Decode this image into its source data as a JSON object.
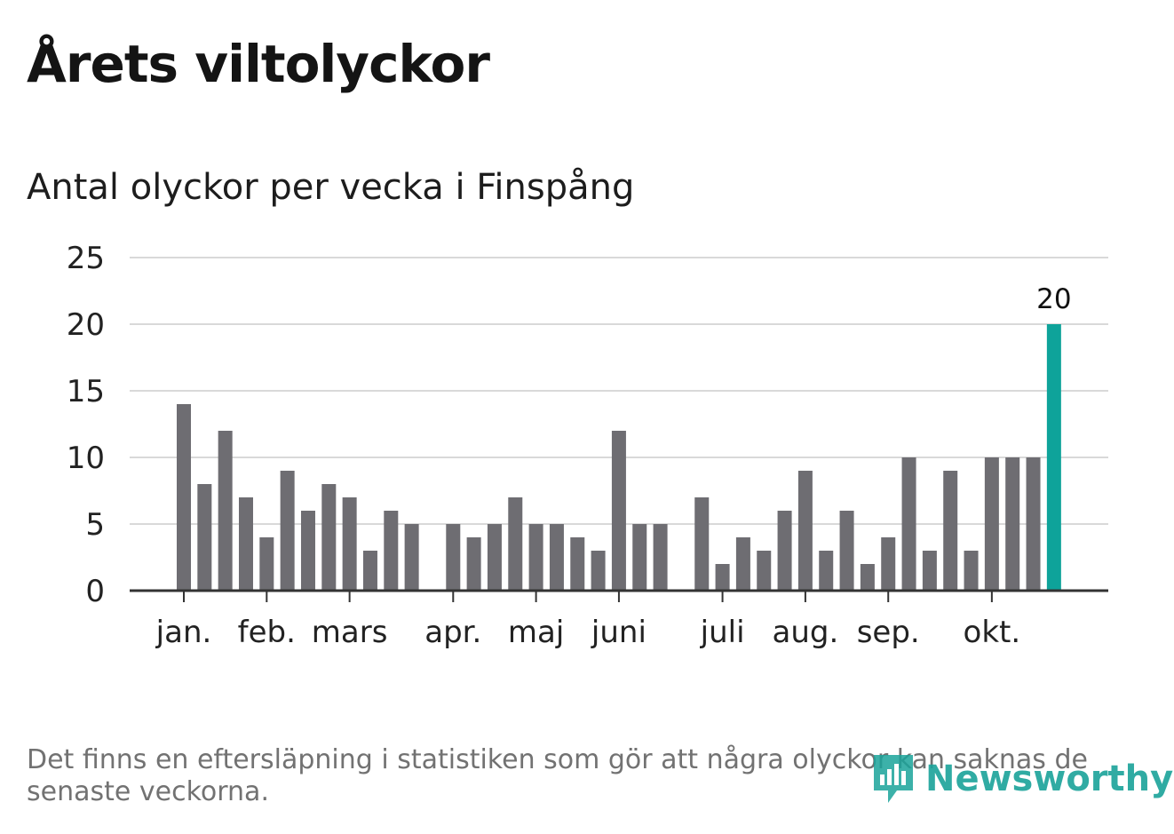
{
  "title": "Årets viltolyckor",
  "subtitle": "Antal olyckor per vecka i Finspång",
  "footnote": "Det finns en eftersläpning i statistiken som gör att några olyckor kan saknas de senaste veckorna.",
  "logo_text": "Newsworthy",
  "colors": {
    "bar": "#6e6d72",
    "highlight": "#0ea39a",
    "grid": "#d9d9d9",
    "axis": "#333333",
    "text": "#222222"
  },
  "chart_data": {
    "type": "bar",
    "title": "Antal olyckor per vecka i Finspång",
    "xlabel": "",
    "ylabel": "",
    "ylim": [
      0,
      25
    ],
    "y_ticks": [
      0,
      5,
      10,
      15,
      20,
      25
    ],
    "grid": true,
    "weeks": [
      1,
      2,
      3,
      4,
      5,
      6,
      7,
      8,
      9,
      10,
      11,
      12,
      13,
      14,
      15,
      16,
      17,
      18,
      19,
      20,
      21,
      22,
      23,
      24,
      25,
      26,
      27,
      28,
      29,
      30,
      31,
      32,
      33,
      34,
      35,
      36,
      37,
      38,
      39,
      40,
      41,
      42,
      43
    ],
    "values": [
      14,
      8,
      12,
      7,
      4,
      9,
      6,
      8,
      7,
      3,
      6,
      5,
      0,
      5,
      4,
      5,
      7,
      5,
      5,
      4,
      3,
      12,
      5,
      5,
      0,
      7,
      2,
      4,
      3,
      6,
      9,
      3,
      6,
      2,
      4,
      10,
      3,
      9,
      3,
      10,
      10,
      10,
      20
    ],
    "highlight_index": 42,
    "highlight_label": "20",
    "month_labels": [
      {
        "label": "jan.",
        "week": 1
      },
      {
        "label": "feb.",
        "week": 5
      },
      {
        "label": "mars",
        "week": 9
      },
      {
        "label": "apr.",
        "week": 14
      },
      {
        "label": "maj",
        "week": 18
      },
      {
        "label": "juni",
        "week": 22
      },
      {
        "label": "juli",
        "week": 27
      },
      {
        "label": "aug.",
        "week": 31
      },
      {
        "label": "sep.",
        "week": 35
      },
      {
        "label": "okt.",
        "week": 40
      }
    ]
  }
}
